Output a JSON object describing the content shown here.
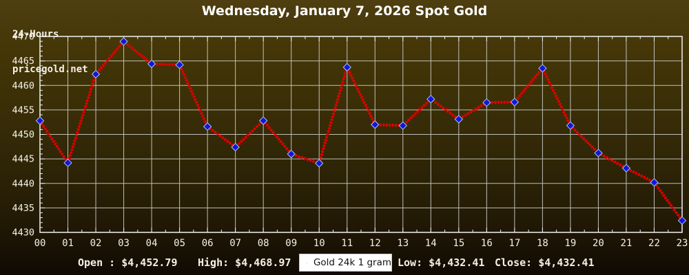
{
  "header": {
    "brand_line1": "24-Hours",
    "brand_line2": "pricegold.net",
    "title": "Wednesday, January 7, 2026 Spot Gold"
  },
  "chart_data": {
    "type": "line",
    "title": "Wednesday, January 7, 2026 Spot Gold",
    "series_name": "Gold 24k 1 gram",
    "x": [
      "00",
      "01",
      "02",
      "03",
      "04",
      "05",
      "06",
      "07",
      "08",
      "09",
      "10",
      "11",
      "12",
      "13",
      "14",
      "15",
      "16",
      "17",
      "18",
      "19",
      "20",
      "21",
      "22",
      "23"
    ],
    "values": [
      4452.79,
      4444.2,
      4462.3,
      4468.97,
      4464.4,
      4464.2,
      4451.6,
      4447.4,
      4452.8,
      4446.0,
      4444.1,
      4463.7,
      4452.0,
      4451.8,
      4457.2,
      4453.1,
      4456.5,
      4456.6,
      4463.5,
      4451.8,
      4446.2,
      4443.1,
      4440.2,
      4432.41
    ],
    "xlabel": "",
    "ylabel": "",
    "ylim": [
      4430,
      4470
    ],
    "yticks": [
      4430,
      4435,
      4440,
      4445,
      4450,
      4455,
      4460,
      4465,
      4470
    ],
    "ytick_step": 5,
    "y_minor_step": 1,
    "x_minor_step": 0.5,
    "grid": true,
    "legend_position": "bottom-center",
    "line_color": "#e60000",
    "marker_color": "#1414dd",
    "marker_edge_color": "#a7c9e8",
    "grid_color": "#dadada",
    "axis_color": "#f2f2f2",
    "tick_label_color": "#f5f2e8"
  },
  "footer": {
    "stats": [
      {
        "name": "open",
        "text": "Open : $4,452.79"
      },
      {
        "name": "high",
        "text": "High: $4,468.97"
      },
      {
        "name": "low",
        "text": "Low: $4,432.41"
      },
      {
        "name": "close",
        "text": "Close: $4,432.41"
      }
    ],
    "legend": {
      "label": "Gold 24k 1 gram"
    }
  }
}
